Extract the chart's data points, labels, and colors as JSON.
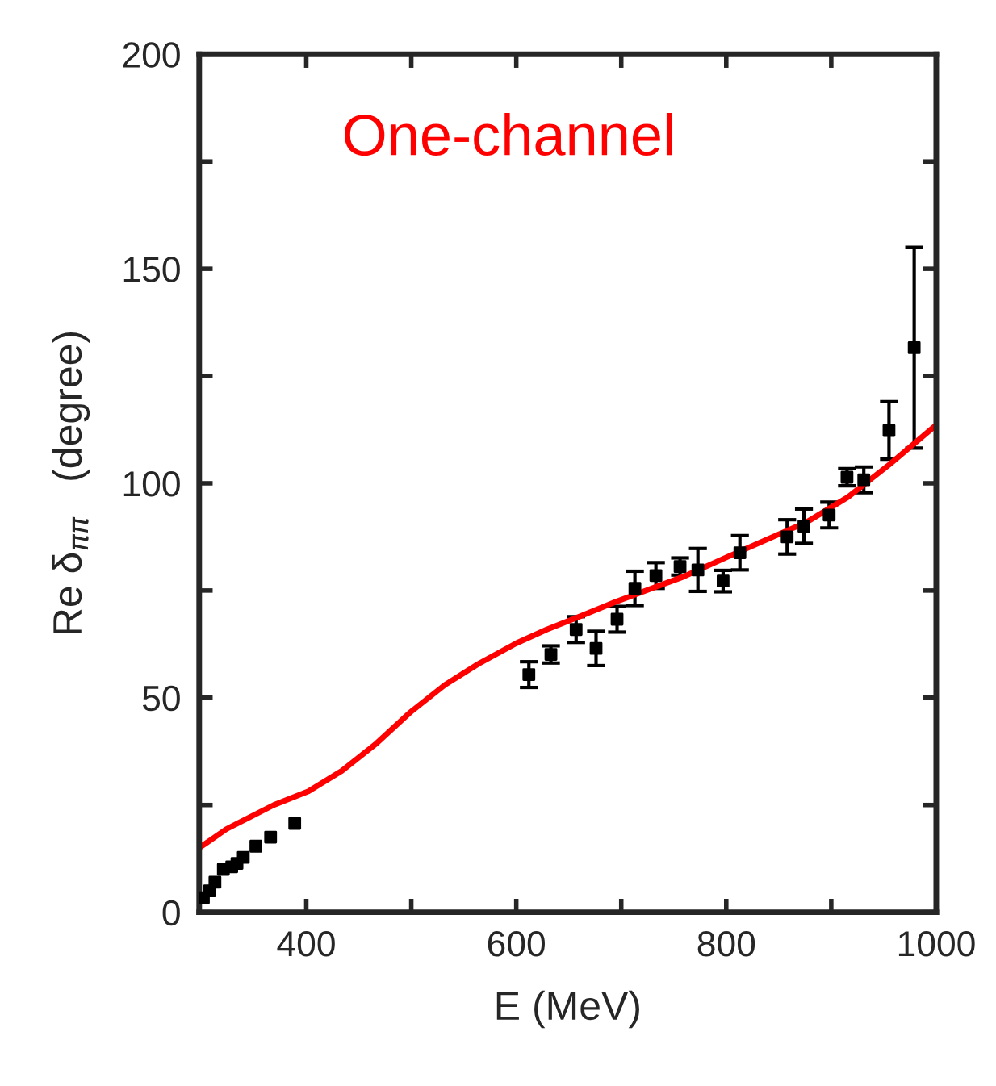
{
  "chart_data": {
    "type": "scatter",
    "xlabel": "E (MeV)",
    "ylabel": "Re δ$_{ππ}$   (degree)",
    "annotations": [
      "One-channel"
    ],
    "xlim": [
      298,
      1000
    ],
    "ylim": [
      0,
      200
    ],
    "xticks": [
      400,
      {
        "value": 500,
        "label": null
      },
      600,
      {
        "value": 700,
        "label": null
      },
      800,
      {
        "value": 900,
        "label": null
      },
      1000
    ],
    "yticks": [
      0,
      {
        "value": 25,
        "label": null
      },
      50,
      {
        "value": 75,
        "label": null
      },
      100,
      {
        "value": 125,
        "label": null
      },
      150,
      {
        "value": 175,
        "label": null
      },
      200
    ],
    "grid": false,
    "series": [
      {
        "color": "#000000",
        "marker": "square",
        "x": [
          302,
          308,
          313,
          321,
          329,
          334,
          340,
          352,
          366,
          389,
          612,
          633,
          657,
          676,
          696,
          713,
          733,
          756,
          773,
          797,
          813,
          858,
          874,
          898,
          915,
          931,
          955,
          979
        ],
        "values": [
          3.4,
          5,
          7,
          10,
          10.6,
          11.4,
          12.8,
          15.4,
          17.5,
          20.7,
          55.4,
          60.1,
          65.9,
          61.5,
          68.3,
          75.5,
          78.5,
          80.6,
          79.8,
          77.2,
          83.8,
          87.5,
          90,
          92.6,
          101.4,
          100.8,
          112.3,
          131.6
        ],
        "errors": [
          null,
          null,
          null,
          null,
          null,
          null,
          null,
          null,
          null,
          null,
          3,
          2,
          3,
          4,
          3,
          4,
          3,
          2,
          5,
          2.5,
          4,
          4,
          4,
          3,
          2,
          3,
          6.7,
          23.4
        ]
      },
      {
        "type": "line",
        "color": "#ff0000",
        "line_style": "solid",
        "x": [
          298,
          324,
          369,
          402,
          434,
          467,
          499,
          532,
          564,
          600,
          629,
          662,
          694,
          727,
          759,
          800,
          837,
          877,
          916,
          955,
          1000
        ],
        "values": [
          15,
          19.4,
          25,
          28.2,
          33,
          39.4,
          46.6,
          53,
          57.9,
          62.7,
          65.9,
          69.1,
          72.3,
          75.3,
          78.2,
          82.7,
          86.7,
          91,
          96.8,
          104.3,
          113.6
        ]
      }
    ]
  }
}
